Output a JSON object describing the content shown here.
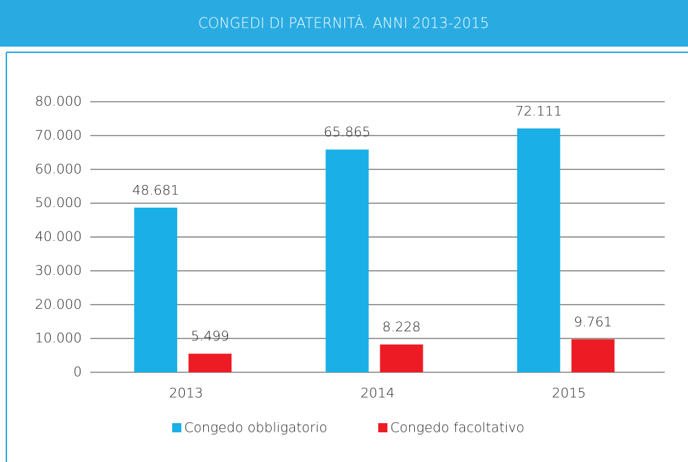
{
  "chart_data": {
    "type": "bar",
    "title": "CONGEDI DI PATERNITÀ. ANNI 2013-2015",
    "categories": [
      "2013",
      "2014",
      "2015"
    ],
    "series": [
      {
        "name": "Congedo obbligatorio",
        "color": "#1aafe6",
        "values": [
          48681,
          65865,
          72111
        ],
        "value_labels": [
          "48.681",
          "65.865",
          "72.111"
        ]
      },
      {
        "name": "Congedo facoltativo",
        "color": "#ed1c24",
        "values": [
          5499,
          8228,
          9761
        ],
        "value_labels": [
          "5.499",
          "8.228",
          "9.761"
        ]
      }
    ],
    "ylim": [
      0,
      80000
    ],
    "yticks": [
      0,
      {
        "value": 10000,
        "label": "10.000"
      },
      {
        "value": 20000,
        "label": "20.000"
      },
      {
        "value": 30000,
        "label": "30.000"
      },
      {
        "value": 40000,
        "label": "40.000"
      },
      {
        "value": 50000,
        "label": "50.000"
      },
      {
        "value": 60000,
        "label": "60.000"
      },
      {
        "value": 70000,
        "label": "70.000"
      },
      {
        "value": 80000,
        "label": "80.000"
      }
    ],
    "grid": true
  }
}
